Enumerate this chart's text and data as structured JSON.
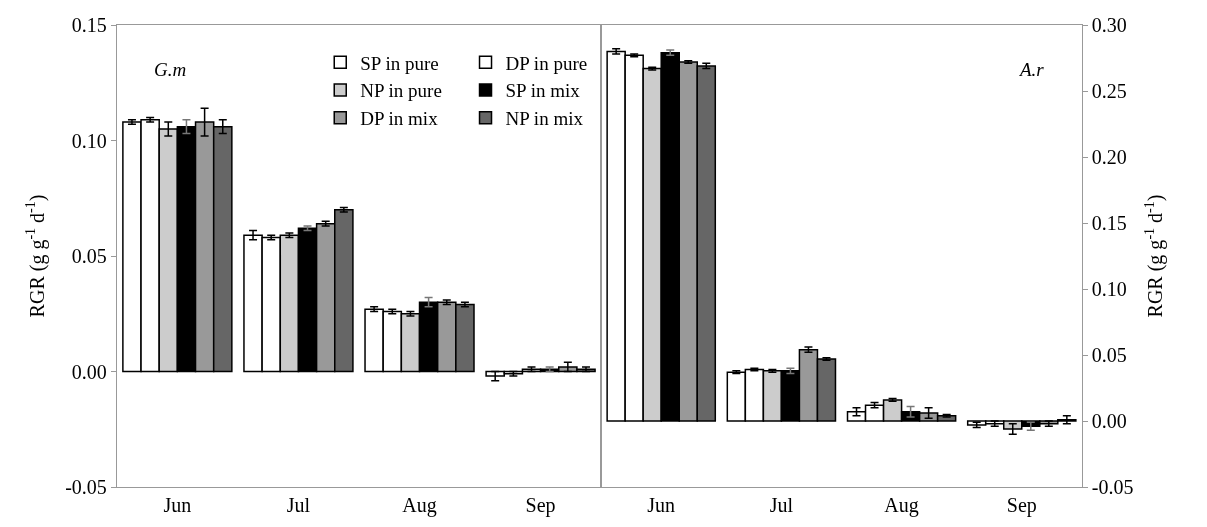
{
  "chart_data": [
    {
      "type": "bar",
      "categories": [
        "Jun",
        "Jul",
        "Aug",
        "Sep"
      ],
      "ylabel": "RGR (g g$^{-1}$ d$^{-1}$)",
      "annotations": [
        "G.m"
      ],
      "legend": "top right",
      "grid": false,
      "ylim": [
        -0.05,
        0.15
      ],
      "yticks": [
        {
          "value": -0.05,
          "label": "-0.05"
        },
        {
          "value": 0,
          "label": "0.00"
        },
        {
          "value": 0.05,
          "label": "0.05"
        },
        {
          "value": 0.1,
          "label": "0.10"
        },
        {
          "value": 0.15,
          "label": "0.15"
        }
      ],
      "series": [
        {
          "name": "SP in pure",
          "color": "#ffffff",
          "values": [
            0.108,
            0.059,
            0.027,
            -0.002
          ],
          "errors": [
            0.001,
            0.002,
            0.001,
            0.002
          ]
        },
        {
          "name": "DP in pure",
          "color": "#ffffff",
          "values": [
            0.109,
            0.058,
            0.026,
            -0.001
          ],
          "errors": [
            0.001,
            0.001,
            0.001,
            0.001
          ]
        },
        {
          "name": "NP in pure",
          "color": "#cccccc",
          "values": [
            0.105,
            0.059,
            0.025,
            0.001
          ],
          "errors": [
            0.003,
            0.001,
            0.001,
            0.001
          ]
        },
        {
          "name": "SP in mix",
          "color": "#000000",
          "values": [
            0.106,
            0.062,
            0.03,
            0.001
          ],
          "errors": [
            0.003,
            0.001,
            0.002,
            0.001
          ]
        },
        {
          "name": "DP in mix",
          "color": "#999999",
          "values": [
            0.108,
            0.064,
            0.03,
            0.002
          ],
          "errors": [
            0.006,
            0.001,
            0.001,
            0.002
          ]
        },
        {
          "name": "NP in mix",
          "color": "#666666",
          "values": [
            0.106,
            0.07,
            0.029,
            0.001
          ],
          "errors": [
            0.003,
            0.001,
            0.001,
            0.001
          ]
        }
      ]
    },
    {
      "type": "bar",
      "categories": [
        "Jun",
        "Jul",
        "Aug",
        "Sep"
      ],
      "ylabel": "RGR (g g$^{-1}$ d$^{-1}$)",
      "annotations": [
        "A.r"
      ],
      "grid": false,
      "ylim": [
        -0.05,
        0.3
      ],
      "yticks": [
        {
          "value": -0.05,
          "label": "-0.05"
        },
        {
          "value": 0,
          "label": "0.00"
        },
        {
          "value": 0.05,
          "label": "0.05"
        },
        {
          "value": 0.1,
          "label": "0.10"
        },
        {
          "value": 0.15,
          "label": "0.15"
        },
        {
          "value": 0.2,
          "label": "0.20"
        },
        {
          "value": 0.25,
          "label": "0.25"
        },
        {
          "value": 0.3,
          "label": "0.30"
        }
      ],
      "series": [
        {
          "color": "#ffffff",
          "values": [
            0.28,
            0.037,
            0.007,
            -0.003
          ],
          "errors": [
            0.002,
            0.001,
            0.003,
            0.002
          ]
        },
        {
          "color": "#ffffff",
          "values": [
            0.277,
            0.039,
            0.012,
            -0.002
          ],
          "errors": [
            0.001,
            0.001,
            0.002,
            0.002
          ]
        },
        {
          "color": "#cccccc",
          "values": [
            0.267,
            0.038,
            0.016,
            -0.006
          ],
          "errors": [
            0.001,
            0.001,
            0.001,
            0.004
          ]
        },
        {
          "color": "#000000",
          "values": [
            0.279,
            0.038,
            0.007,
            -0.004
          ],
          "errors": [
            0.002,
            0.002,
            0.004,
            0.003
          ]
        },
        {
          "color": "#999999",
          "values": [
            0.272,
            0.054,
            0.006,
            -0.002
          ],
          "errors": [
            0.001,
            0.002,
            0.004,
            0.002
          ]
        },
        {
          "color": "#666666",
          "values": [
            0.269,
            0.047,
            0.004,
            0.001
          ],
          "errors": [
            0.002,
            0.001,
            0.001,
            0.003
          ]
        }
      ]
    }
  ]
}
